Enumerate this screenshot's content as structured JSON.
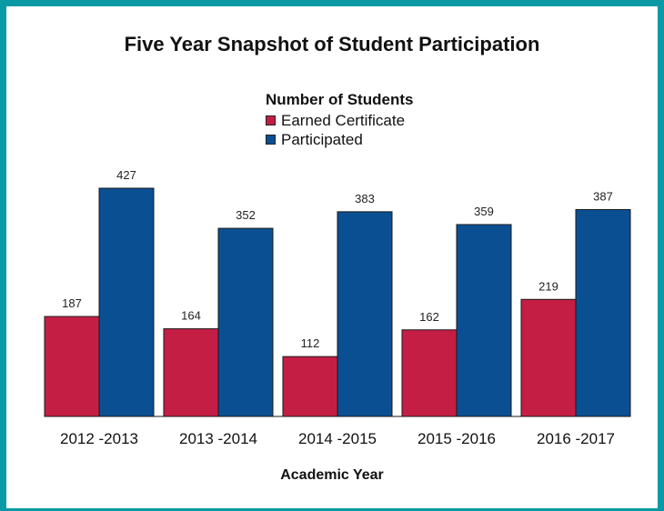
{
  "chart_data": {
    "type": "bar",
    "title": "Five Year Snapshot of Student Participation",
    "legend_title": "Number of Students",
    "xlabel": "Academic Year",
    "ylabel": "",
    "categories": [
      "2012 -2013",
      "2013 -2014",
      "2014 -2015",
      "2015 -2016",
      "2016 -2017"
    ],
    "series": [
      {
        "name": "Earned Certificate",
        "color": "#c41e45",
        "values": [
          187,
          164,
          112,
          162,
          219
        ]
      },
      {
        "name": "Participated",
        "color": "#0b4f93",
        "values": [
          427,
          352,
          383,
          359,
          387
        ]
      }
    ],
    "ylim": [
      0,
      427
    ],
    "grid": false,
    "legend_position": "top-center"
  }
}
